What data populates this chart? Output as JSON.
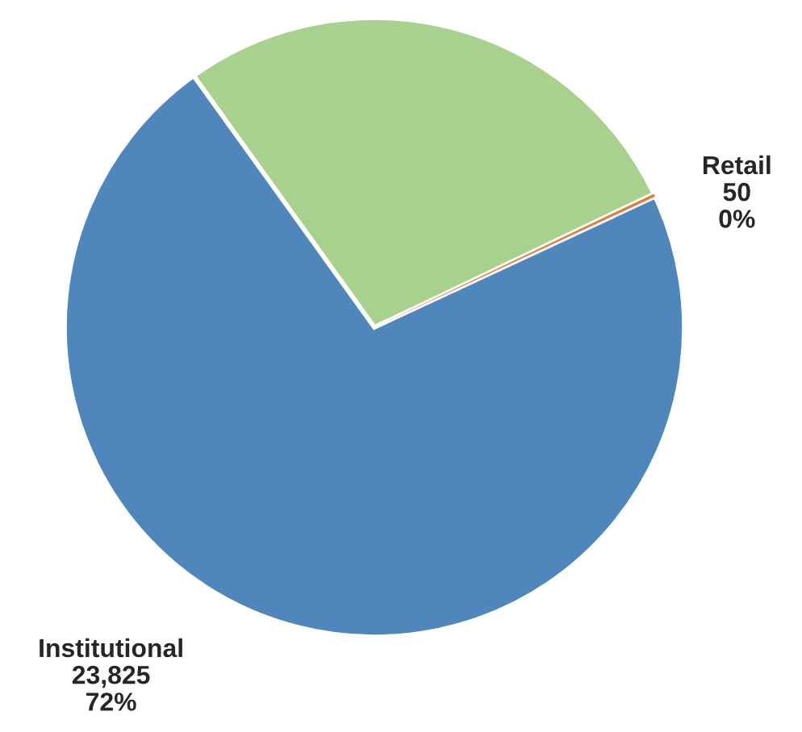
{
  "chart_data": {
    "type": "pie",
    "categories": [
      "Retail",
      null,
      "Institutional"
    ],
    "values": [
      50,
      9200,
      23825
    ],
    "colors": [
      "#e07b39",
      "#a9d18e",
      "#4f87bd"
    ],
    "value_labels": [
      "50\n0%",
      null,
      "23,825\n72%"
    ],
    "legend": false
  }
}
